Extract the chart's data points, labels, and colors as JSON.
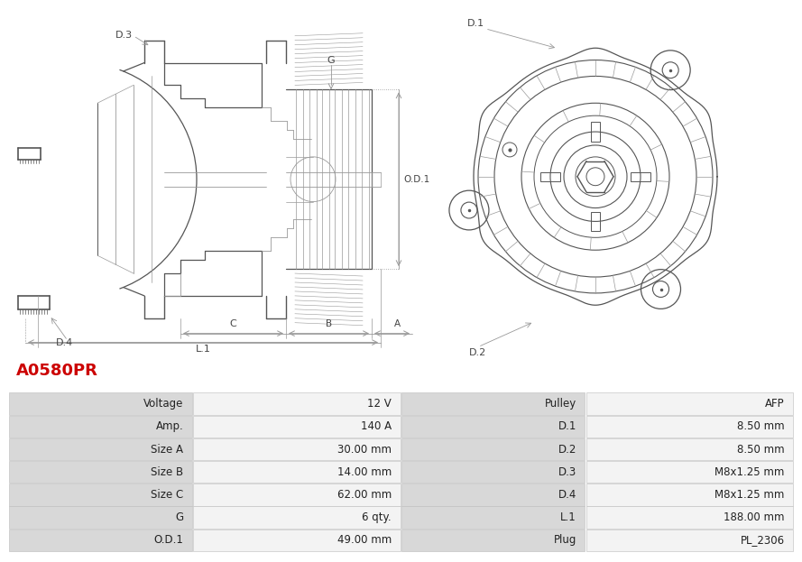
{
  "title": "A0580PR",
  "title_color": "#cc0000",
  "table_rows": [
    [
      "Voltage",
      "12 V",
      "Pulley",
      "AFP"
    ],
    [
      "Amp.",
      "140 A",
      "D.1",
      "8.50 mm"
    ],
    [
      "Size A",
      "30.00 mm",
      "D.2",
      "8.50 mm"
    ],
    [
      "Size B",
      "14.00 mm",
      "D.3",
      "M8x1.25 mm"
    ],
    [
      "Size C",
      "62.00 mm",
      "D.4",
      "M8x1.25 mm"
    ],
    [
      "G",
      "6 qty.",
      "L.1",
      "188.00 mm"
    ],
    [
      "O.D.1",
      "49.00 mm",
      "Plug",
      "PL_2306"
    ]
  ],
  "bg_color": "#ffffff",
  "table_text_color": "#333333",
  "lc": "#555555",
  "lc2": "#999999"
}
